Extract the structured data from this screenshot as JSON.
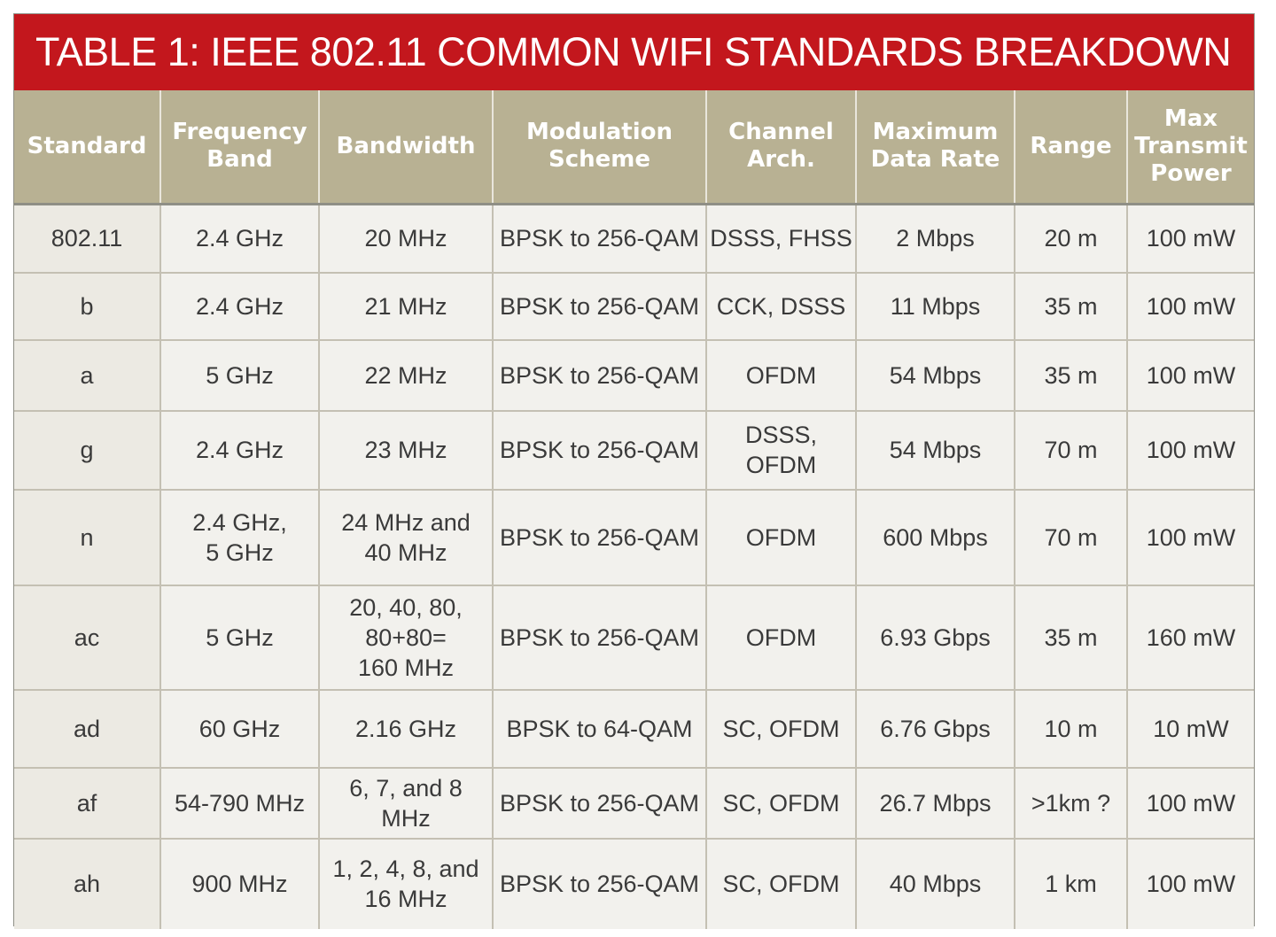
{
  "title": "TABLE 1: IEEE 802.11 COMMON WIFI STANDARDS BREAKDOWN",
  "colors": {
    "title_bg": "#c3171d",
    "header_bg": "#b8b193",
    "cell_bg": "#f2f1ed"
  },
  "headers": [
    "Standard",
    "Frequency\nBand",
    "Bandwidth",
    "Modulation\nScheme",
    "Channel\nArch.",
    "Maximum\nData Rate",
    "Range",
    "Max\nTransmit\nPower"
  ],
  "rows": [
    [
      "802.11",
      "2.4 GHz",
      "20 MHz",
      "BPSK to 256-QAM",
      "DSSS, FHSS",
      "2 Mbps",
      "20 m",
      "100 mW"
    ],
    [
      "b",
      "2.4 GHz",
      "21 MHz",
      "BPSK to 256-QAM",
      "CCK, DSSS",
      "11 Mbps",
      "35 m",
      "100 mW"
    ],
    [
      "a",
      "5 GHz",
      "22 MHz",
      "BPSK to 256-QAM",
      "OFDM",
      "54 Mbps",
      "35 m",
      "100 mW"
    ],
    [
      "g",
      "2.4 GHz",
      "23 MHz",
      "BPSK to 256-QAM",
      "DSSS, OFDM",
      "54 Mbps",
      "70 m",
      "100 mW"
    ],
    [
      "n",
      "2.4 GHz,\n5 GHz",
      "24 MHz and\n40 MHz",
      "BPSK to 256-QAM",
      "OFDM",
      "600 Mbps",
      "70 m",
      "100 mW"
    ],
    [
      "ac",
      "5 GHz",
      "20, 40, 80,\n80+80=\n160 MHz",
      "BPSK to 256-QAM",
      "OFDM",
      "6.93 Gbps",
      "35 m",
      "160 mW"
    ],
    [
      "ad",
      "60 GHz",
      "2.16 GHz",
      "BPSK to 64-QAM",
      "SC, OFDM",
      "6.76 Gbps",
      "10 m",
      "10 mW"
    ],
    [
      "af",
      "54-790 MHz",
      "6, 7, and 8 MHz",
      "BPSK to 256-QAM",
      "SC, OFDM",
      "26.7 Mbps",
      ">1km ?",
      "100 mW"
    ],
    [
      "ah",
      "900 MHz",
      "1, 2, 4, 8, and\n16 MHz",
      "BPSK to 256-QAM",
      "SC, OFDM",
      "40 Mbps",
      "1 km",
      "100 mW"
    ]
  ]
}
